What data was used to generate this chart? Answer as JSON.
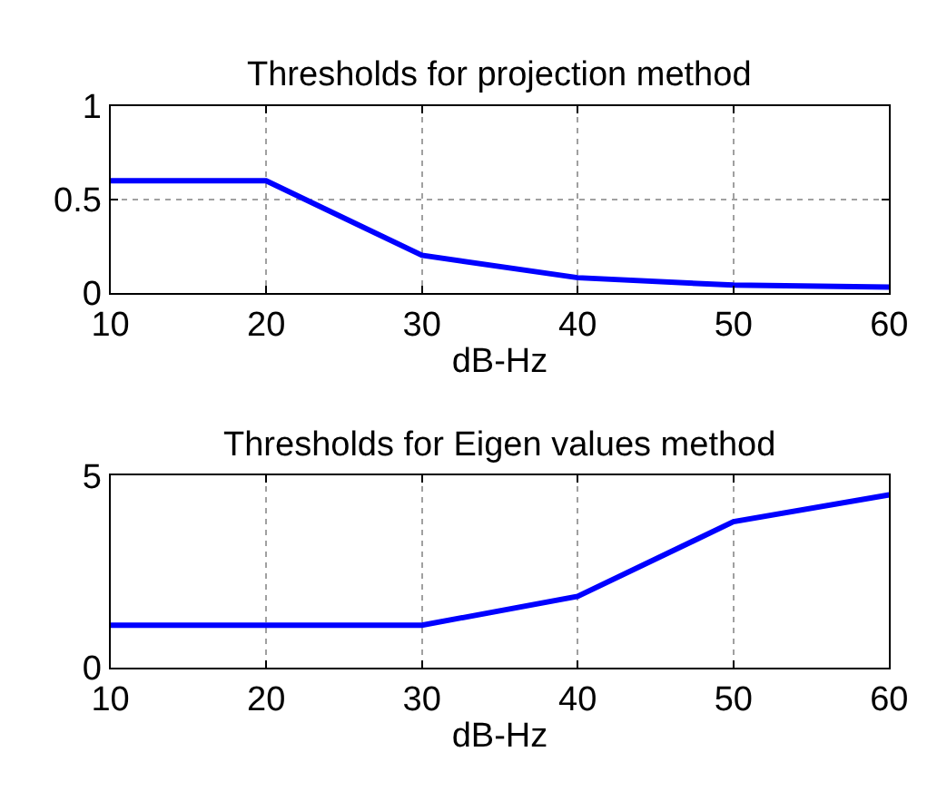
{
  "chart_data": [
    {
      "type": "line",
      "title": "Thresholds for projection method",
      "xlabel": "dB-Hz",
      "x": [
        10,
        20,
        30,
        40,
        50,
        60
      ],
      "series": [
        {
          "color": "#0000ff",
          "values": [
            0.6,
            0.6,
            0.2,
            0.08,
            0.04,
            0.03
          ]
        }
      ],
      "xlim": [
        10,
        60
      ],
      "xticks": [
        10,
        20,
        30,
        40,
        50,
        60
      ],
      "ylim": [
        0,
        1
      ],
      "yticks": [
        0,
        0.5,
        1
      ],
      "grid": true,
      "line_style": "solid",
      "marker": "none"
    },
    {
      "type": "line",
      "title": "Thresholds for Eigen values method",
      "xlabel": "dB-Hz",
      "x": [
        10,
        20,
        30,
        40,
        50,
        60
      ],
      "series": [
        {
          "color": "#0000ff",
          "values": [
            1.1,
            1.1,
            1.1,
            1.85,
            3.8,
            4.5
          ]
        }
      ],
      "xlim": [
        10,
        60
      ],
      "xticks": [
        10,
        20,
        30,
        40,
        50,
        60
      ],
      "ylim": [
        0,
        5
      ],
      "yticks": [
        0,
        5
      ],
      "grid": true,
      "line_style": "solid",
      "marker": "none"
    }
  ]
}
